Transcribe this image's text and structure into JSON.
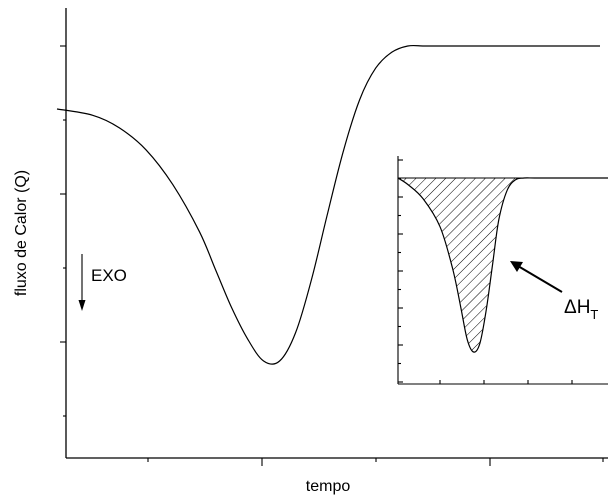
{
  "chart_data": [
    {
      "type": "line",
      "xlabel": "tempo",
      "ylabel": "fluxo de Calor (Q)",
      "grid": false,
      "legend": "none",
      "tick_labels": false,
      "line_color": "#000000",
      "series": [
        {
          "x": [
            0,
            0.05,
            0.1,
            0.15,
            0.2,
            0.25,
            0.28,
            0.31,
            0.34,
            0.37,
            0.4,
            0.43,
            0.46,
            0.49,
            0.52,
            0.55,
            0.58,
            0.61,
            0.64,
            0.67,
            0.7,
            0.75,
            0.8,
            0.9,
            1.0
          ],
          "y": [
            0.8,
            0.78,
            0.74,
            0.67,
            0.56,
            0.41,
            0.29,
            0.17,
            0.07,
            0.0,
            0.0,
            0.09,
            0.26,
            0.47,
            0.67,
            0.83,
            0.93,
            0.98,
            1.0,
            1.0,
            1.0,
            1.0,
            1.0,
            1.0,
            1.0
          ]
        }
      ],
      "annotations": [
        {
          "text": "EXO",
          "arrow": "down"
        }
      ]
    },
    {
      "type": "area",
      "role": "inset",
      "fill": "hatched",
      "grid": false,
      "tick_labels": false,
      "annotations": [
        {
          "text": "ΔH",
          "subscript": "T",
          "arrow": "points-to-hatched-area"
        }
      ]
    }
  ]
}
